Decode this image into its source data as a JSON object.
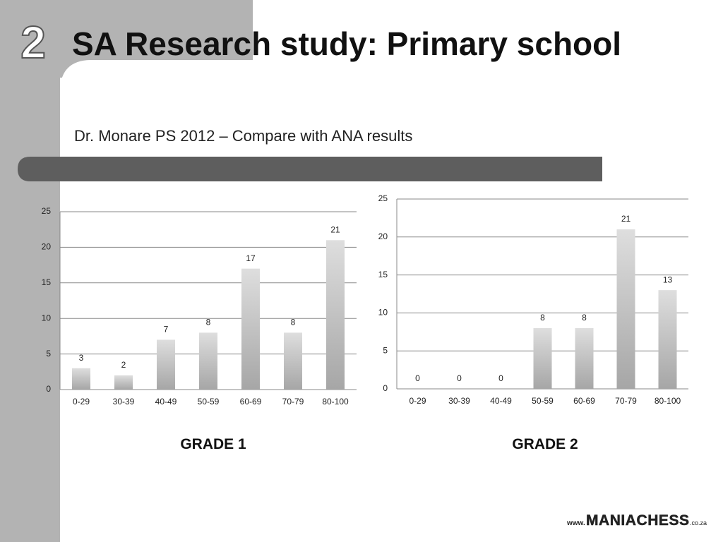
{
  "slide": {
    "number": "2",
    "title": "SA Research study: Primary school",
    "subtitle": "Dr. Monare PS 2012 – Compare with ANA results",
    "logo": {
      "prefix": "www.",
      "name": "MANIACHESS",
      "suffix": ".co.za"
    }
  },
  "chart_data": [
    {
      "type": "bar",
      "title": "GRADE 1",
      "categories": [
        "0-29",
        "30-39",
        "40-49",
        "50-59",
        "60-69",
        "70-79",
        "80-100"
      ],
      "values": [
        3,
        2,
        7,
        8,
        17,
        8,
        21
      ],
      "color": "#a6a6a6",
      "ylim": [
        0,
        25
      ],
      "yticks": [
        0,
        5,
        10,
        15,
        20,
        25
      ],
      "grid": true
    },
    {
      "type": "bar",
      "title": "GRADE 2",
      "categories": [
        "0-29",
        "30-39",
        "40-49",
        "50-59",
        "60-69",
        "70-79",
        "80-100"
      ],
      "values": [
        0,
        0,
        0,
        8,
        8,
        21,
        13
      ],
      "color": "#a6a6a6",
      "ylim": [
        0,
        25
      ],
      "yticks": [
        0,
        5,
        10,
        15,
        20,
        25
      ],
      "grid": true
    }
  ]
}
